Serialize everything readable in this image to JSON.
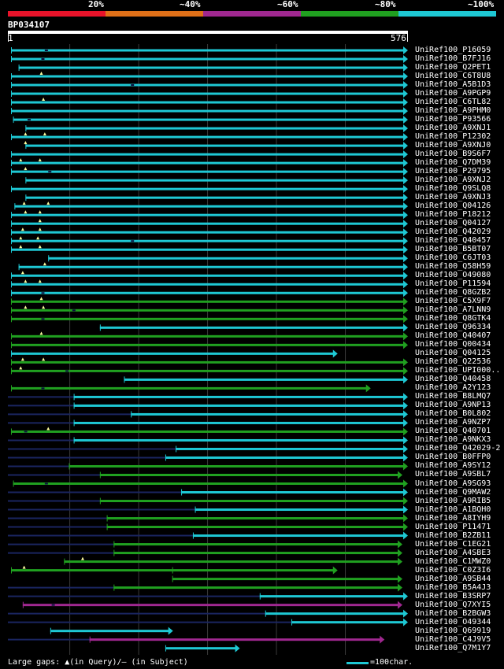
{
  "legend": {
    "labels": [
      "20%",
      "~40%",
      "~60%",
      "~80%",
      "~100%"
    ],
    "colors": [
      "#e8132a",
      "#e07018",
      "#a02890",
      "#20a020",
      "#1ec8d4"
    ]
  },
  "query": {
    "id": "BP034107",
    "start": "1",
    "end": "576",
    "length": 576
  },
  "footer": {
    "large_gaps": "Large gaps: ▲(in Query)/– (in Subject)",
    "scale": "=100char."
  },
  "colors": {
    "cyan": "#1ec8d4",
    "green": "#20a020",
    "purple": "#a02890",
    "dark": "#1a2560",
    "grid": "#3a3a3a"
  },
  "hits": [
    {
      "label": "UniRef100_P16059",
      "start": 1,
      "end": 576,
      "color": "cyan",
      "mark": 50
    },
    {
      "label": "UniRef100_B7FJ16",
      "start": 1,
      "end": 576,
      "color": "cyan",
      "mark": 45
    },
    {
      "label": "UniRef100_Q2PET1",
      "start": 12,
      "end": 576,
      "color": "cyan"
    },
    {
      "label": "UniRef100_C6T8U8",
      "start": 1,
      "end": 576,
      "color": "cyan",
      "tri": 45
    },
    {
      "label": "UniRef100_A5B1D3",
      "start": 1,
      "end": 576,
      "color": "cyan",
      "mark": 175
    },
    {
      "label": "UniRef100_A9PGP9",
      "start": 1,
      "end": 576,
      "color": "cyan"
    },
    {
      "label": "UniRef100_C6TL82",
      "start": 1,
      "end": 576,
      "color": "cyan",
      "tri": 48
    },
    {
      "label": "UniRef100_A9PHM0",
      "start": 1,
      "end": 576,
      "color": "cyan"
    },
    {
      "label": "UniRef100_P93566",
      "start": 4,
      "end": 576,
      "color": "cyan",
      "mark": 25
    },
    {
      "label": "UniRef100_A9XNJ1",
      "start": 22,
      "end": 576,
      "color": "cyan"
    },
    {
      "label": "UniRef100_P12302",
      "start": 1,
      "end": 576,
      "color": "cyan",
      "tri": 22,
      "tri2": 50
    },
    {
      "label": "UniRef100_A9XNJ0",
      "start": 22,
      "end": 576,
      "color": "cyan",
      "tri": 22
    },
    {
      "label": "UniRef100_B9S6F7",
      "start": 1,
      "end": 576,
      "color": "cyan"
    },
    {
      "label": "UniRef100_Q7DM39",
      "start": 1,
      "end": 576,
      "color": "cyan",
      "tri": 15,
      "tri2": 43
    },
    {
      "label": "UniRef100_P29795",
      "start": 1,
      "end": 576,
      "color": "cyan",
      "tri": 22,
      "mark": 55
    },
    {
      "label": "UniRef100_A9XNJ2",
      "start": 22,
      "end": 576,
      "color": "cyan"
    },
    {
      "label": "UniRef100_Q9SLQ8",
      "start": 1,
      "end": 576,
      "color": "cyan"
    },
    {
      "label": "UniRef100_A9XNJ3",
      "start": 22,
      "end": 576,
      "color": "cyan"
    },
    {
      "label": "UniRef100_Q04126",
      "start": 6,
      "end": 576,
      "color": "cyan",
      "tri": 20,
      "tri2": 55
    },
    {
      "label": "UniRef100_P18212",
      "start": 1,
      "end": 576,
      "color": "cyan",
      "tri": 22,
      "tri2": 43
    },
    {
      "label": "UniRef100_Q04127",
      "start": 1,
      "end": 576,
      "color": "cyan",
      "tri": 43
    },
    {
      "label": "UniRef100_Q42029",
      "start": 1,
      "end": 576,
      "color": "cyan",
      "tri": 18,
      "tri2": 43
    },
    {
      "label": "UniRef100_Q40457",
      "start": 1,
      "end": 576,
      "color": "cyan",
      "tri": 15,
      "tri2": 40,
      "mark": 175
    },
    {
      "label": "UniRef100_B5BT07",
      "start": 1,
      "end": 576,
      "color": "cyan",
      "tri": 15,
      "tri2": 43
    },
    {
      "label": "UniRef100_C6JT03",
      "start": 55,
      "end": 576,
      "color": "cyan"
    },
    {
      "label": "UniRef100_Q58H59",
      "start": 12,
      "end": 576,
      "color": "cyan",
      "tri": 50
    },
    {
      "label": "UniRef100_O49080",
      "start": 1,
      "end": 576,
      "color": "cyan",
      "tri": 18
    },
    {
      "label": "UniRef100_P11594",
      "start": 1,
      "end": 576,
      "color": "cyan",
      "tri": 22,
      "tri2": 43
    },
    {
      "label": "UniRef100_Q8GZB2",
      "start": 1,
      "end": 576,
      "color": "cyan",
      "mark": 45
    },
    {
      "label": "UniRef100_C5X9F7",
      "start": 1,
      "end": 576,
      "color": "green",
      "tri": 45
    },
    {
      "label": "UniRef100_A7LNN9",
      "start": 1,
      "end": 576,
      "color": "green",
      "tri": 22,
      "tri2": 48,
      "mark": 90
    },
    {
      "label": "UniRef100_Q8GTK4",
      "start": 1,
      "end": 576,
      "color": "green",
      "mark": 45
    },
    {
      "label": "UniRef100_Q96334",
      "start": 130,
      "end": 576,
      "color": "cyan"
    },
    {
      "label": "UniRef100_Q40407",
      "start": 1,
      "end": 576,
      "color": "green",
      "tri": 45
    },
    {
      "label": "UniRef100_Q00434",
      "start": 1,
      "end": 576,
      "color": "green"
    },
    {
      "label": "UniRef100_Q04125",
      "start": 1,
      "end": 474,
      "color": "cyan"
    },
    {
      "label": "UniRef100_Q22536",
      "start": 1,
      "end": 576,
      "color": "green",
      "tri": 18,
      "tri2": 48
    },
    {
      "label": "UniRef100_UPI000..",
      "start": 1,
      "end": 576,
      "color": "green",
      "tri": 15,
      "mark": 80
    },
    {
      "label": "UniRef100_Q40458",
      "start": 165,
      "end": 576,
      "color": "cyan"
    },
    {
      "label": "UniRef100_A2Y123",
      "start": 1,
      "end": 522,
      "color": "green",
      "mark": 45
    },
    {
      "label": "UniRef100_B8LMQ7",
      "start": 92,
      "end": 576,
      "color": "cyan",
      "dark": true
    },
    {
      "label": "UniRef100_A9NP13",
      "start": 92,
      "end": 576,
      "color": "cyan",
      "dark": true
    },
    {
      "label": "UniRef100_B0L802",
      "start": 175,
      "end": 576,
      "color": "cyan",
      "dark": true
    },
    {
      "label": "UniRef100_A9NZP7",
      "start": 92,
      "end": 576,
      "color": "cyan",
      "dark": true
    },
    {
      "label": "UniRef100_Q40701",
      "start": 1,
      "end": 576,
      "color": "green",
      "tri": 55,
      "mark": 20
    },
    {
      "label": "UniRef100_A9NKX3",
      "start": 92,
      "end": 576,
      "color": "cyan",
      "dark": true
    },
    {
      "label": "UniRef100_Q42029-2",
      "start": 240,
      "end": 576,
      "color": "cyan",
      "dark": true
    },
    {
      "label": "UniRef100_B0FFP0",
      "start": 225,
      "end": 576,
      "color": "cyan",
      "dark": true
    },
    {
      "label": "UniRef100_A9SY12",
      "start": 85,
      "end": 576,
      "color": "green",
      "dark": true
    },
    {
      "label": "UniRef100_A9SBL7",
      "start": 130,
      "end": 568,
      "color": "green",
      "dark": true
    },
    {
      "label": "UniRef100_A9SG93",
      "start": 4,
      "end": 576,
      "color": "green",
      "mark": 50
    },
    {
      "label": "UniRef100_Q9MAW2",
      "start": 248,
      "end": 576,
      "color": "cyan",
      "dark": true
    },
    {
      "label": "UniRef100_A9RIB5",
      "start": 130,
      "end": 576,
      "color": "green",
      "dark": true
    },
    {
      "label": "UniRef100_A1BQH0",
      "start": 268,
      "end": 576,
      "color": "cyan",
      "dark": true
    },
    {
      "label": "UniRef100_A8IYH9",
      "start": 140,
      "end": 576,
      "color": "green",
      "dark": true
    },
    {
      "label": "UniRef100_P11471",
      "start": 140,
      "end": 576,
      "color": "green",
      "dark": true
    },
    {
      "label": "UniRef100_B2ZB11",
      "start": 265,
      "end": 576,
      "color": "cyan",
      "dark": true
    },
    {
      "label": "UniRef100_C1EG21",
      "start": 150,
      "end": 568,
      "color": "green",
      "dark": true
    },
    {
      "label": "UniRef100_A4SBE3",
      "start": 150,
      "end": 568,
      "color": "green",
      "dark": true
    },
    {
      "label": "UniRef100_C1MWZ0",
      "start": 78,
      "end": 568,
      "color": "green",
      "tri": 105
    },
    {
      "label": "UniRef100_C0Z3I6",
      "start": 1,
      "end": 474,
      "color": "green",
      "tri": 20,
      "tick": 235
    },
    {
      "label": "UniRef100_A9SB44",
      "start": 235,
      "end": 568,
      "color": "green"
    },
    {
      "label": "UniRef100_B5A4J3",
      "start": 150,
      "end": 568,
      "color": "green",
      "dark": true
    },
    {
      "label": "UniRef100_B3SRP7",
      "start": 362,
      "end": 576,
      "color": "cyan",
      "dark": true
    },
    {
      "label": "UniRef100_Q7XYI5",
      "start": 18,
      "end": 568,
      "color": "purple",
      "mark": 60
    },
    {
      "label": "UniRef100_B2BGW3",
      "start": 370,
      "end": 576,
      "color": "cyan",
      "dark": true
    },
    {
      "label": "UniRef100_O49344",
      "start": 408,
      "end": 576,
      "color": "cyan",
      "dark": true
    },
    {
      "label": "UniRef100_Q69919",
      "start": 58,
      "end": 235,
      "color": "cyan"
    },
    {
      "label": "UniRef100_C4J9V5",
      "start": 115,
      "end": 542,
      "color": "purple",
      "dark": true
    },
    {
      "label": "UniRef100_Q7M1Y7",
      "start": 225,
      "end": 332,
      "color": "cyan"
    }
  ]
}
